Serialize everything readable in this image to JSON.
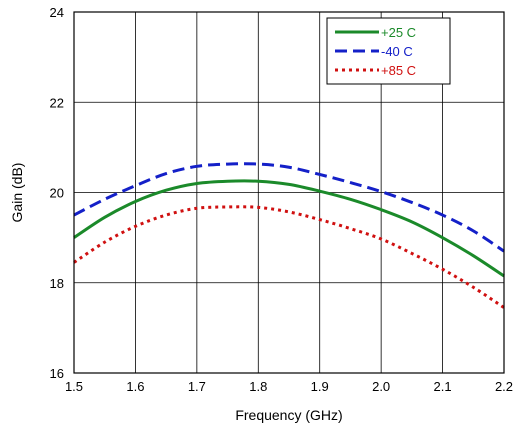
{
  "chart_data": {
    "type": "line",
    "title": "",
    "xlabel": "Frequency (GHz)",
    "ylabel": "Gain (dB)",
    "xlim": [
      1.5,
      2.2
    ],
    "ylim": [
      16,
      24
    ],
    "xticks": [
      "1.5",
      "1.6",
      "1.7",
      "1.8",
      "1.9",
      "2.0",
      "2.1",
      "2.2"
    ],
    "yticks": [
      "16",
      "18",
      "20",
      "22",
      "24"
    ],
    "grid": true,
    "legend_position": "top-right",
    "series": [
      {
        "name": "+25 C",
        "color": "#1b8a2a",
        "dash": "solid",
        "x": [
          1.5,
          1.55,
          1.6,
          1.65,
          1.7,
          1.75,
          1.8,
          1.85,
          1.9,
          1.95,
          2.0,
          2.05,
          2.1,
          2.15,
          2.2
        ],
        "y": [
          19.0,
          19.45,
          19.8,
          20.05,
          20.2,
          20.25,
          20.25,
          20.18,
          20.03,
          19.85,
          19.62,
          19.35,
          19.0,
          18.6,
          18.15
        ]
      },
      {
        "name": "-40 C",
        "color": "#1420c8",
        "dash": "dashed",
        "x": [
          1.5,
          1.55,
          1.6,
          1.65,
          1.7,
          1.75,
          1.8,
          1.85,
          1.9,
          1.95,
          2.0,
          2.05,
          2.1,
          2.15,
          2.2
        ],
        "y": [
          19.5,
          19.85,
          20.15,
          20.42,
          20.58,
          20.63,
          20.63,
          20.56,
          20.4,
          20.22,
          20.02,
          19.78,
          19.5,
          19.15,
          18.7
        ]
      },
      {
        "name": "+85 C",
        "color": "#d01010",
        "dash": "dotted",
        "x": [
          1.5,
          1.55,
          1.6,
          1.65,
          1.7,
          1.75,
          1.8,
          1.85,
          1.9,
          1.95,
          2.0,
          2.05,
          2.1,
          2.15,
          2.2
        ],
        "y": [
          18.45,
          18.9,
          19.25,
          19.5,
          19.65,
          19.68,
          19.67,
          19.57,
          19.4,
          19.2,
          18.97,
          18.65,
          18.3,
          17.9,
          17.45
        ]
      }
    ]
  }
}
